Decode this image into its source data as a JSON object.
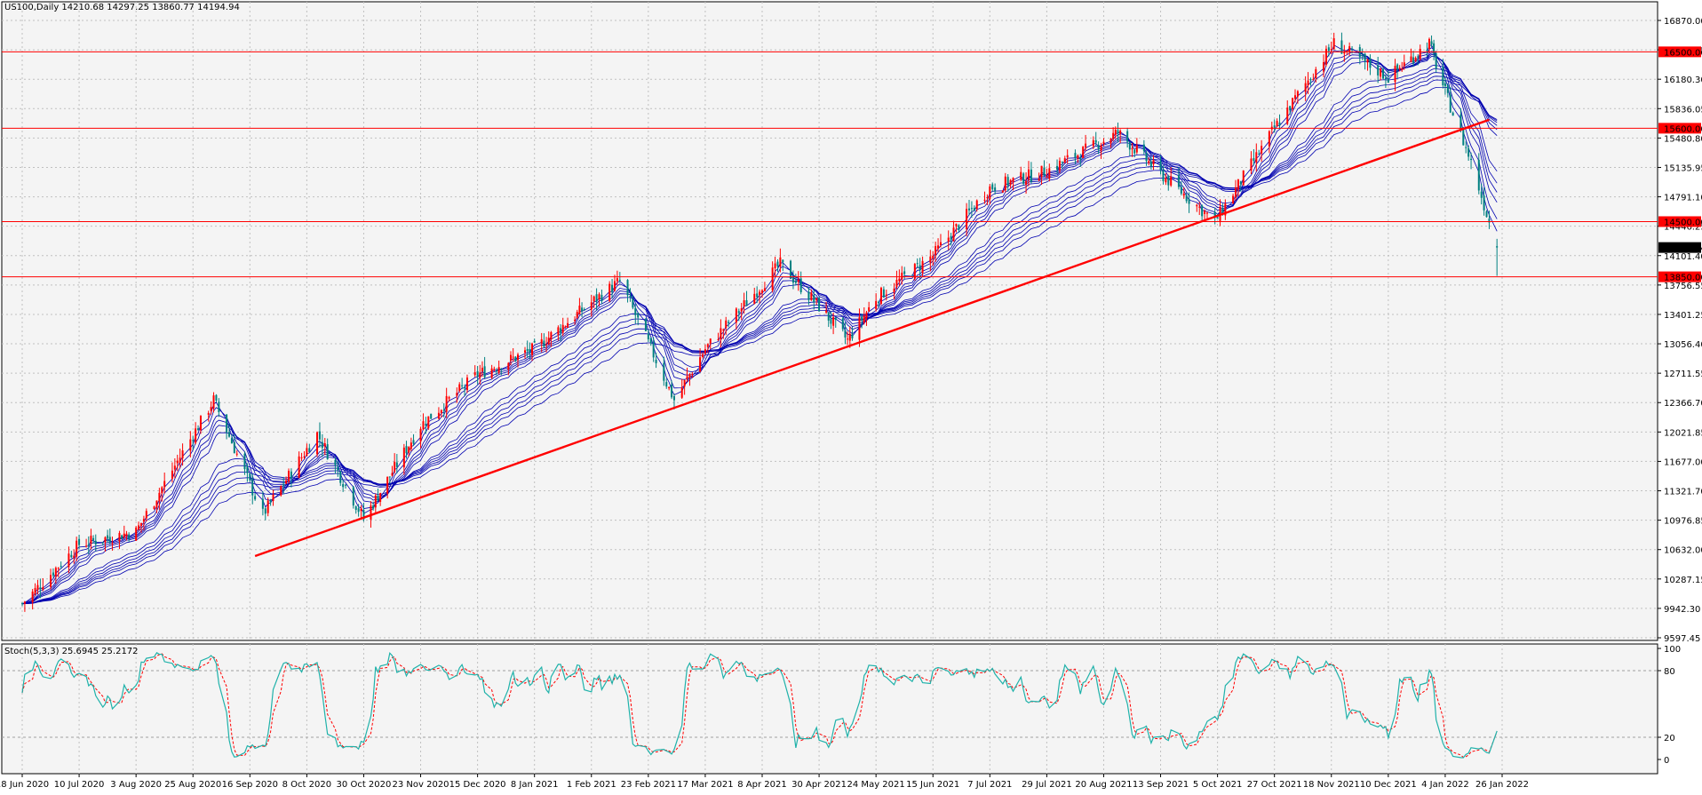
{
  "header": {
    "symbol_line": "US100,Daily  14210.68 14297.25 13860.77 14194.94"
  },
  "colors": {
    "background": "#f4f4f4",
    "grid": "#c0c0c0",
    "bull": "#ff0000",
    "bear": "#008080",
    "ribbon": "#0000b0",
    "level": "#ff0000",
    "trend": "#ff0000",
    "stoch_main": "#20b2aa",
    "stoch_signal": "#ff0000"
  },
  "price_axis": {
    "ticks": [
      "16870.00",
      "16525.15",
      "16180.30",
      "15836.05",
      "15480.80",
      "15135.95",
      "14791.10",
      "14446.25",
      "14101.40",
      "13756.55",
      "13401.25",
      "13056.40",
      "12711.55",
      "12366.70",
      "12021.85",
      "11677.00",
      "11321.70",
      "10976.85",
      "10632.00",
      "10287.15",
      "9942.30",
      "9597.45"
    ],
    "current_label": "14194.94"
  },
  "x_axis": {
    "dates": [
      "18 Jun 2020",
      "10 Jul 2020",
      "3 Aug 2020",
      "25 Aug 2020",
      "16 Sep 2020",
      "8 Oct 2020",
      "30 Oct 2020",
      "23 Nov 2020",
      "15 Dec 2020",
      "8 Jan 2021",
      "1 Feb 2021",
      "23 Feb 2021",
      "17 Mar 2021",
      "8 Apr 2021",
      "30 Apr 2021",
      "24 May 2021",
      "15 Jun 2021",
      "7 Jul 2021",
      "29 Jul 2021",
      "20 Aug 2021",
      "13 Sep 2021",
      "5 Oct 2021",
      "27 Oct 2021",
      "18 Nov 2021",
      "10 Dec 2021",
      "4 Jan 2022",
      "26 Jan 2022"
    ]
  },
  "levels": [
    {
      "price": 16500,
      "label": "16500.00"
    },
    {
      "price": 15600,
      "label": "15600.00"
    },
    {
      "price": 14500,
      "label": "14500.00"
    },
    {
      "price": 13850,
      "label": "13850.00"
    }
  ],
  "stochastic": {
    "label": "Stoch(5,3,3) 25.6945 25.2172",
    "axis_ticks": [
      "100",
      "80",
      "20",
      "0"
    ]
  },
  "chart_data": {
    "type": "candlestick",
    "title": "US100,Daily",
    "ohlc_last": {
      "open": 14210.68,
      "high": 14297.25,
      "low": 13860.77,
      "close": 14194.94
    },
    "ylim": [
      9597.45,
      16870
    ],
    "x_range": [
      "18 Jun 2020",
      "26 Jan 2022"
    ],
    "price_path_approx": {
      "dates": [
        "18 Jun 2020",
        "10 Jul 2020",
        "3 Aug 2020",
        "2 Sep 2020",
        "21 Sep 2020",
        "12 Oct 2020",
        "30 Oct 2020",
        "23 Nov 2020",
        "15 Dec 2020",
        "8 Jan 2021",
        "12 Feb 2021",
        "5 Mar 2021",
        "17 Mar 2021",
        "15 Apr 2021",
        "12 May 2021",
        "24 May 2021",
        "15 Jun 2021",
        "7 Jul 2021",
        "29 Jul 2021",
        "26 Aug 2021",
        "4 Oct 2021",
        "27 Oct 2021",
        "19 Nov 2021",
        "10 Dec 2021",
        "28 Dec 2021",
        "14 Jan 2022",
        "24 Jan 2022"
      ],
      "close": [
        10000,
        10700,
        10850,
        12400,
        11050,
        12000,
        11000,
        12100,
        12700,
        13000,
        13800,
        12400,
        13000,
        14000,
        13100,
        13600,
        14100,
        14900,
        15100,
        15550,
        14500,
        15600,
        16600,
        16200,
        16600,
        15200,
        14195
      ]
    },
    "trendline": {
      "from": {
        "date": "18 Sep 2020",
        "price": 10560
      },
      "to": {
        "date": "21 Jan 2022",
        "price": 15700
      }
    },
    "horizontal_levels": [
      16500,
      15600,
      14500,
      13850
    ],
    "indicator": {
      "name": "Stoch(5,3,3)",
      "main": 25.6945,
      "signal": 25.2172,
      "range": [
        0,
        100
      ],
      "levels": [
        80,
        20
      ]
    },
    "grid": true
  }
}
